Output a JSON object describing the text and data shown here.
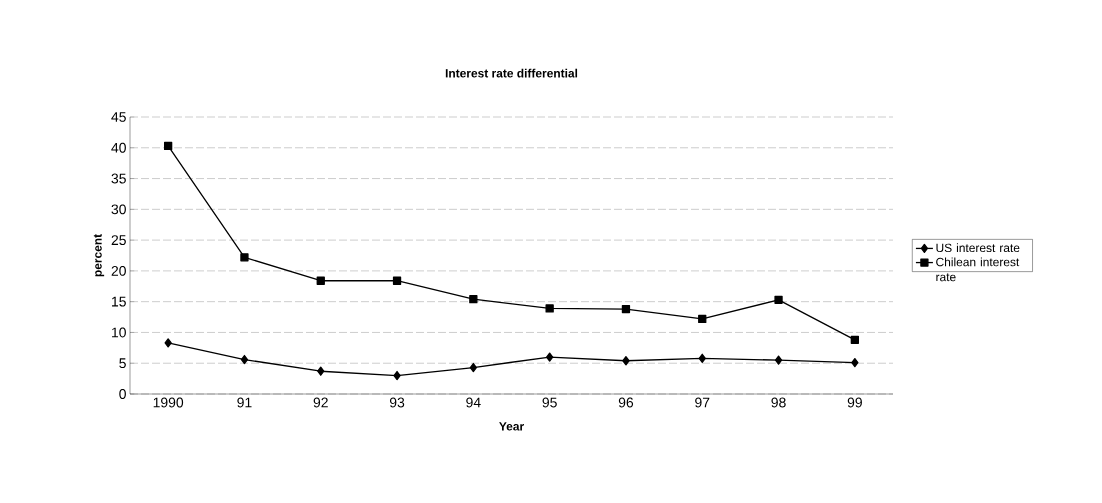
{
  "chart_data": {
    "type": "line",
    "title": "Interest rate differential",
    "xlabel": "Year",
    "ylabel": "percent",
    "categories": [
      "1990",
      "91",
      "92",
      "93",
      "94",
      "95",
      "96",
      "97",
      "98",
      "99"
    ],
    "series": [
      {
        "name": "US interest rate",
        "color": "#000000",
        "marker": "diamond",
        "values": [
          8.3,
          5.6,
          3.7,
          3.0,
          4.3,
          6.0,
          5.4,
          5.8,
          5.5,
          5.1
        ]
      },
      {
        "name": "Chilean interest rate",
        "color": "#000000",
        "marker": "square",
        "values": [
          40.3,
          22.2,
          18.4,
          18.4,
          15.4,
          13.9,
          13.8,
          12.2,
          15.3,
          8.8
        ]
      }
    ],
    "ylim": [
      0,
      45
    ],
    "yticks": [
      0,
      5,
      10,
      15,
      20,
      25,
      30,
      35,
      40,
      45
    ],
    "grid": "y",
    "legend": "right",
    "line_style": "solid"
  }
}
